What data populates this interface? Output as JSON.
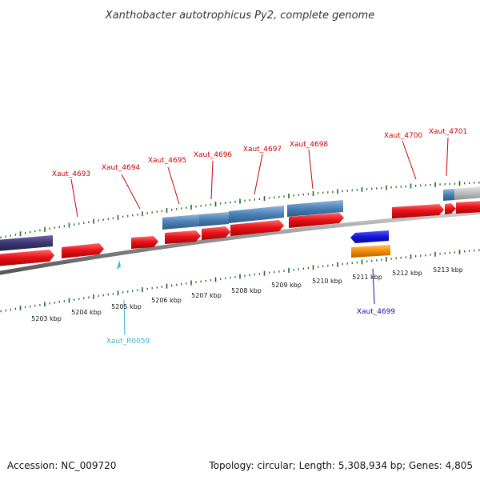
{
  "title": "Xanthobacter autotrophicus Py2, complete genome",
  "footer": {
    "accession": "Accession: NC_009720",
    "summary": "Topology: circular; Length: 5,308,934 bp; Genes: 4,805"
  },
  "colors": {
    "backbone": "#8a8a8a",
    "tick": "#1e6b1e",
    "red_gene": "#e8141b",
    "blue_gene": "#4a80b4",
    "dark_gene": "#3a3570",
    "rna_gene": "#1414d8",
    "orange_gene": "#f08c00",
    "trna": "#40b8e0",
    "label_red": "#cc0000",
    "label_blue": "#1010b0",
    "label_cyan": "#33b5d6"
  },
  "scale_labels": [
    {
      "text": "5203 kbp"
    },
    {
      "text": "5204 kbp"
    },
    {
      "text": "5205 kbp"
    },
    {
      "text": "5206 kbp"
    },
    {
      "text": "5207 kbp"
    },
    {
      "text": "5208 kbp"
    },
    {
      "text": "5209 kbp"
    },
    {
      "text": "5210 kbp"
    },
    {
      "text": "5211 kbp"
    },
    {
      "text": "5212 kbp"
    },
    {
      "text": "5213 kbp"
    }
  ],
  "gene_labels": [
    {
      "text": "Xaut_4693",
      "color": "label_red"
    },
    {
      "text": "Xaut_4694",
      "color": "label_red"
    },
    {
      "text": "Xaut_4695",
      "color": "label_red"
    },
    {
      "text": "Xaut_4696",
      "color": "label_red"
    },
    {
      "text": "Xaut_4697",
      "color": "label_red"
    },
    {
      "text": "Xaut_4698",
      "color": "label_red"
    },
    {
      "text": "Xaut_4700",
      "color": "label_red"
    },
    {
      "text": "Xaut_4701",
      "color": "label_red"
    },
    {
      "text": "Xaut_4699",
      "color": "label_blue"
    },
    {
      "text": "Xaut_R0059",
      "color": "label_cyan"
    }
  ]
}
